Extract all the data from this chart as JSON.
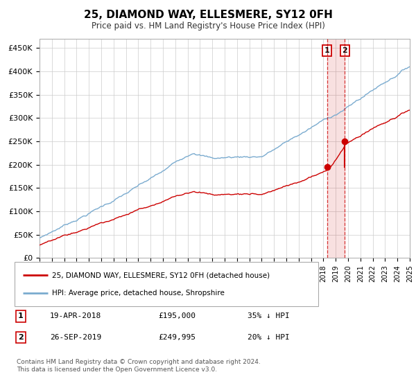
{
  "title": "25, DIAMOND WAY, ELLESMERE, SY12 0FH",
  "subtitle": "Price paid vs. HM Land Registry's House Price Index (HPI)",
  "hpi_label": "HPI: Average price, detached house, Shropshire",
  "property_label": "25, DIAMOND WAY, ELLESMERE, SY12 0FH (detached house)",
  "hpi_color": "#7aabcf",
  "property_color": "#cc0000",
  "ylim": [
    0,
    470000
  ],
  "yticks": [
    0,
    50000,
    100000,
    150000,
    200000,
    250000,
    300000,
    350000,
    400000,
    450000
  ],
  "ytick_labels": [
    "£0",
    "£50K",
    "£100K",
    "£150K",
    "£200K",
    "£250K",
    "£300K",
    "£350K",
    "£400K",
    "£450K"
  ],
  "xstart": 1995,
  "xend": 2025,
  "transaction1_date": 2018.29,
  "transaction1_price": 195000,
  "transaction1_label": "1",
  "transaction1_text": "19-APR-2018",
  "transaction1_amount": "£195,000",
  "transaction1_pct": "35% ↓ HPI",
  "transaction2_date": 2019.74,
  "transaction2_price": 249995,
  "transaction2_label": "2",
  "transaction2_text": "26-SEP-2019",
  "transaction2_amount": "£249,995",
  "transaction2_pct": "20% ↓ HPI",
  "copyright_text": "Contains HM Land Registry data © Crown copyright and database right 2024.\nThis data is licensed under the Open Government Licence v3.0.",
  "background_color": "#ffffff",
  "grid_color": "#cccccc"
}
